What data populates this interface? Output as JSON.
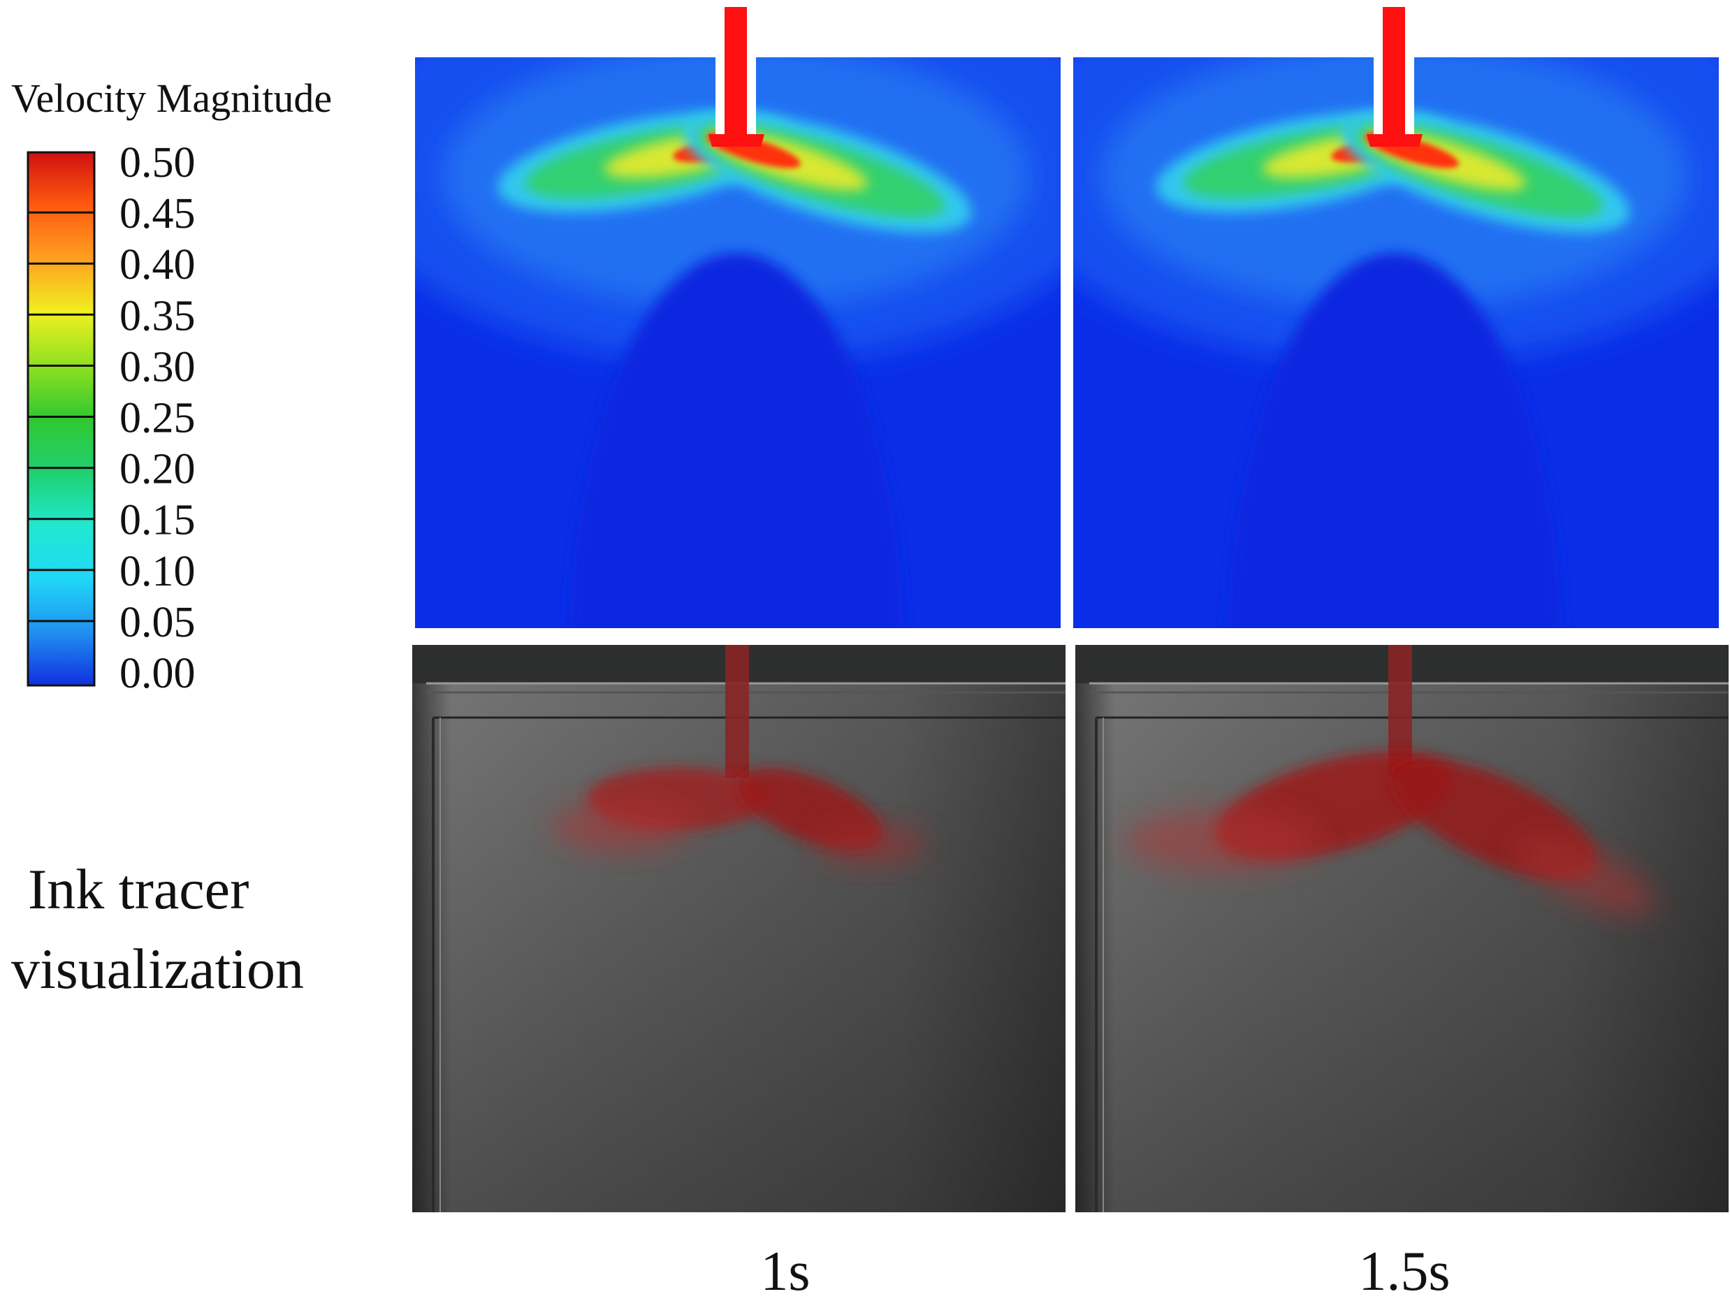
{
  "legend": {
    "title": "Velocity Magnitude",
    "ticks": [
      "0.50",
      "0.45",
      "0.40",
      "0.35",
      "0.30",
      "0.25",
      "0.20",
      "0.15",
      "0.10",
      "0.05",
      "0.00"
    ]
  },
  "row_label": [
    "Ink tracer",
    "visualization"
  ],
  "captions": [
    "1s",
    "1.5s"
  ]
}
